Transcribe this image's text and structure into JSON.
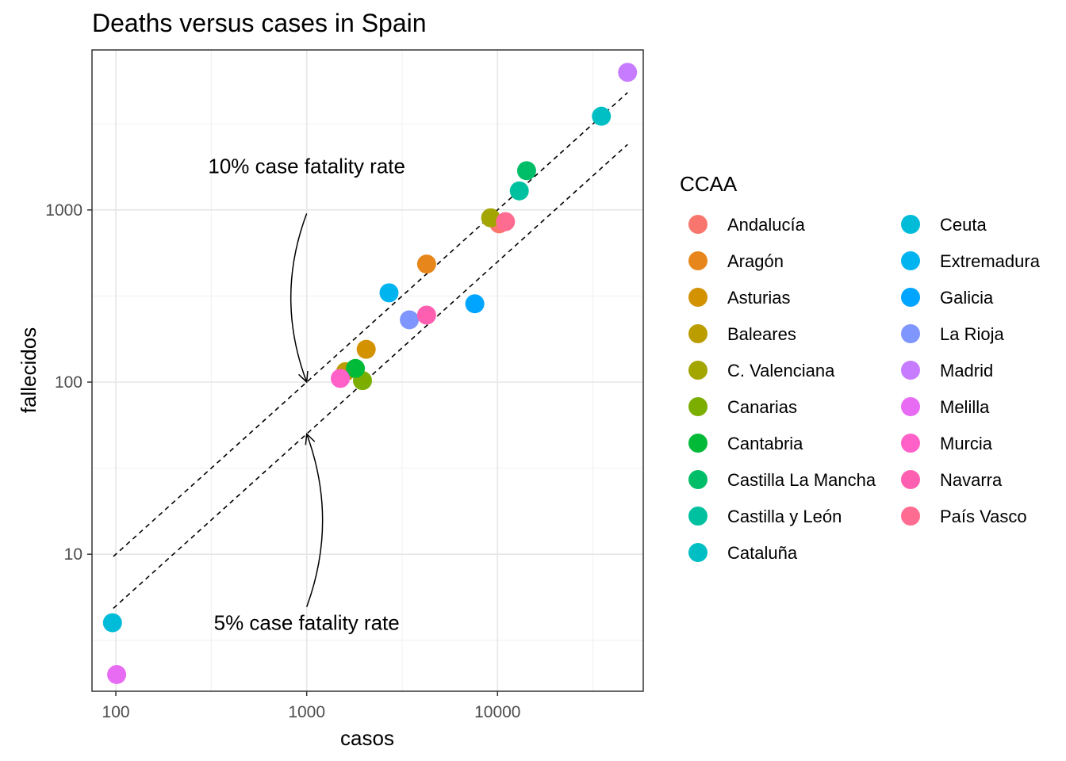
{
  "chart_data": {
    "type": "scatter",
    "title": "Deaths versus cases in Spain",
    "xlabel": "casos",
    "ylabel": "fallecidos",
    "x_scale": "log10",
    "y_scale": "log10",
    "xlim": [
      75,
      58000
    ],
    "ylim": [
      1.6,
      8500
    ],
    "x_ticks": [
      {
        "value": 100,
        "label": "100"
      },
      {
        "value": 1000,
        "label": "1000"
      },
      {
        "value": 10000,
        "label": "10000"
      }
    ],
    "y_ticks": [
      {
        "value": 10,
        "label": "10"
      },
      {
        "value": 100,
        "label": "100"
      },
      {
        "value": 1000,
        "label": "1000"
      }
    ],
    "grid": true,
    "legend": {
      "title": "CCAA",
      "placement": "right",
      "columns": 2
    },
    "series": [
      {
        "name": "Andalucía",
        "color": "#F8766D",
        "x": 10200,
        "y": 830
      },
      {
        "name": "Aragón",
        "color": "#E7861B",
        "x": 4250,
        "y": 485
      },
      {
        "name": "Asturias",
        "color": "#D39200",
        "x": 2050,
        "y": 155
      },
      {
        "name": "Baleares",
        "color": "#BB9D00",
        "x": 1600,
        "y": 115
      },
      {
        "name": "C. Valenciana",
        "color": "#A3A500",
        "x": 9200,
        "y": 900
      },
      {
        "name": "Canarias",
        "color": "#7CAE00",
        "x": 1960,
        "y": 102
      },
      {
        "name": "Cantabria",
        "color": "#00BA38",
        "x": 1800,
        "y": 120
      },
      {
        "name": "Castilla La Mancha",
        "color": "#00BE67",
        "x": 14200,
        "y": 1690
      },
      {
        "name": "Castilla y León",
        "color": "#00C19F",
        "x": 13000,
        "y": 1290
      },
      {
        "name": "Cataluña",
        "color": "#00BFC4",
        "x": 35000,
        "y": 3500
      },
      {
        "name": "Ceuta",
        "color": "#00BCD8",
        "x": 96,
        "y": 4
      },
      {
        "name": "Extremadura",
        "color": "#00B4EF",
        "x": 2700,
        "y": 330
      },
      {
        "name": "Galicia",
        "color": "#00A5FF",
        "x": 7600,
        "y": 285
      },
      {
        "name": "La Rioja",
        "color": "#7F96FF",
        "x": 3450,
        "y": 230
      },
      {
        "name": "Madrid",
        "color": "#C77CFF",
        "x": 48000,
        "y": 6300
      },
      {
        "name": "Melilla",
        "color": "#E76BF3",
        "x": 101,
        "y": 2
      },
      {
        "name": "Murcia",
        "color": "#FF61C9",
        "x": 1500,
        "y": 105
      },
      {
        "name": "Navarra",
        "color": "#FF5FB0",
        "x": 4250,
        "y": 245
      },
      {
        "name": "País Vasco",
        "color": "#FF6C91",
        "x": 11000,
        "y": 855
      }
    ],
    "reference_lines": [
      {
        "rate": 0.1,
        "x_range": [
          97,
          48000
        ]
      },
      {
        "rate": 0.05,
        "x_range": [
          97,
          48000
        ]
      }
    ],
    "annotations": [
      {
        "text": "10% case fatality rate",
        "x": 1000,
        "y": 1800,
        "arrow_to": [
          1000,
          100
        ]
      },
      {
        "text": "5% case fatality rate",
        "x": 1000,
        "y": 4,
        "arrow_to": [
          1000,
          50
        ]
      }
    ]
  }
}
